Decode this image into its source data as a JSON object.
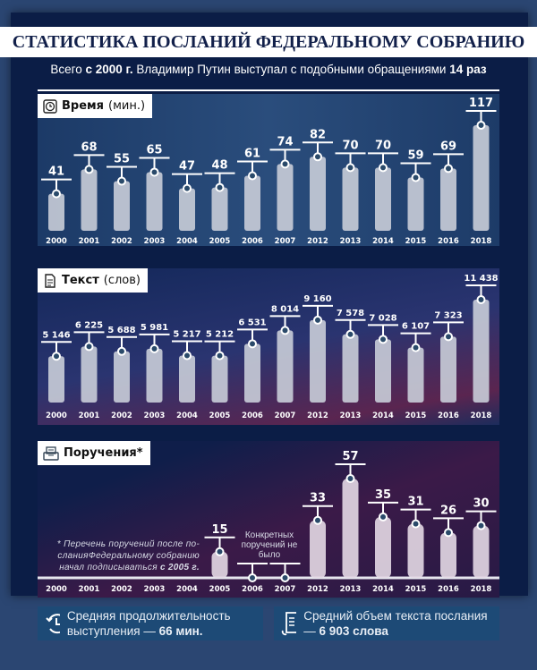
{
  "title": "СТАТИСТИКА ПОСЛАНИЙ ФЕДЕРАЛЬНОМУ СОБРАНИЮ",
  "subtitle": {
    "a": "Всего ",
    "b": "с 2000 г.",
    "c": " Владимир Путин выступал с подобными обращениями ",
    "d": "14 раз"
  },
  "colors": {
    "bar": "#c9cdd8",
    "bar3": "#e4d9e4",
    "marker": "#ffffff"
  },
  "chart_data": [
    {
      "type": "bar",
      "title": "Время",
      "unit": "(мин.)",
      "icon": "clock-icon",
      "categories": [
        "2000",
        "2001",
        "2002",
        "2003",
        "2004",
        "2005",
        "2006",
        "2007",
        "2012",
        "2013",
        "2014",
        "2015",
        "2016",
        "2018"
      ],
      "values": [
        41,
        68,
        55,
        65,
        47,
        48,
        61,
        74,
        82,
        70,
        70,
        59,
        69,
        117
      ],
      "labels": [
        "41",
        "68",
        "55",
        "65",
        "47",
        "48",
        "61",
        "74",
        "82",
        "70",
        "70",
        "59",
        "69",
        "117"
      ],
      "ylim": [
        0,
        117
      ]
    },
    {
      "type": "bar",
      "title": "Текст",
      "unit": "(слов)",
      "icon": "document-icon",
      "categories": [
        "2000",
        "2001",
        "2002",
        "2003",
        "2004",
        "2005",
        "2006",
        "2007",
        "2012",
        "2013",
        "2014",
        "2015",
        "2016",
        "2018"
      ],
      "values": [
        5146,
        6225,
        5688,
        5981,
        5217,
        5212,
        6531,
        8014,
        9160,
        7578,
        7028,
        6107,
        7323,
        11438
      ],
      "labels": [
        "5 146",
        "6 225",
        "5 688",
        "5 981",
        "5 217",
        "5 212",
        "6 531",
        "8 014",
        "9 160",
        "7 578",
        "7 028",
        "6 107",
        "7 323",
        "11 438"
      ],
      "ylim": [
        0,
        11438
      ]
    },
    {
      "type": "bar",
      "title": "Поручения*",
      "unit": "",
      "icon": "printer-icon",
      "categories": [
        "2000",
        "2001",
        "2002",
        "2003",
        "2004",
        "2005",
        "2006",
        "2007",
        "2012",
        "2013",
        "2014",
        "2015",
        "2016",
        "2018"
      ],
      "values": [
        null,
        null,
        null,
        null,
        null,
        15,
        0,
        0,
        33,
        57,
        35,
        31,
        26,
        30
      ],
      "labels": [
        "",
        "",
        "",
        "",
        "",
        "15",
        "",
        "",
        "33",
        "57",
        "35",
        "31",
        "26",
        "30"
      ],
      "ylim": [
        0,
        57
      ],
      "note_a": "* Перечень поручений после по-сланияФедеральному собранию начал подписываться ",
      "note_b": "с 2005 г.",
      "no_orders": "Конкретных поручений не было"
    }
  ],
  "stats": [
    {
      "text": "Средняя продолжительность выступления — ",
      "value": "66 мин.",
      "icon": "clock-history-icon"
    },
    {
      "text": "Средний объем текста послания — ",
      "value": "6 903 слова",
      "icon": "scroll-icon"
    }
  ]
}
